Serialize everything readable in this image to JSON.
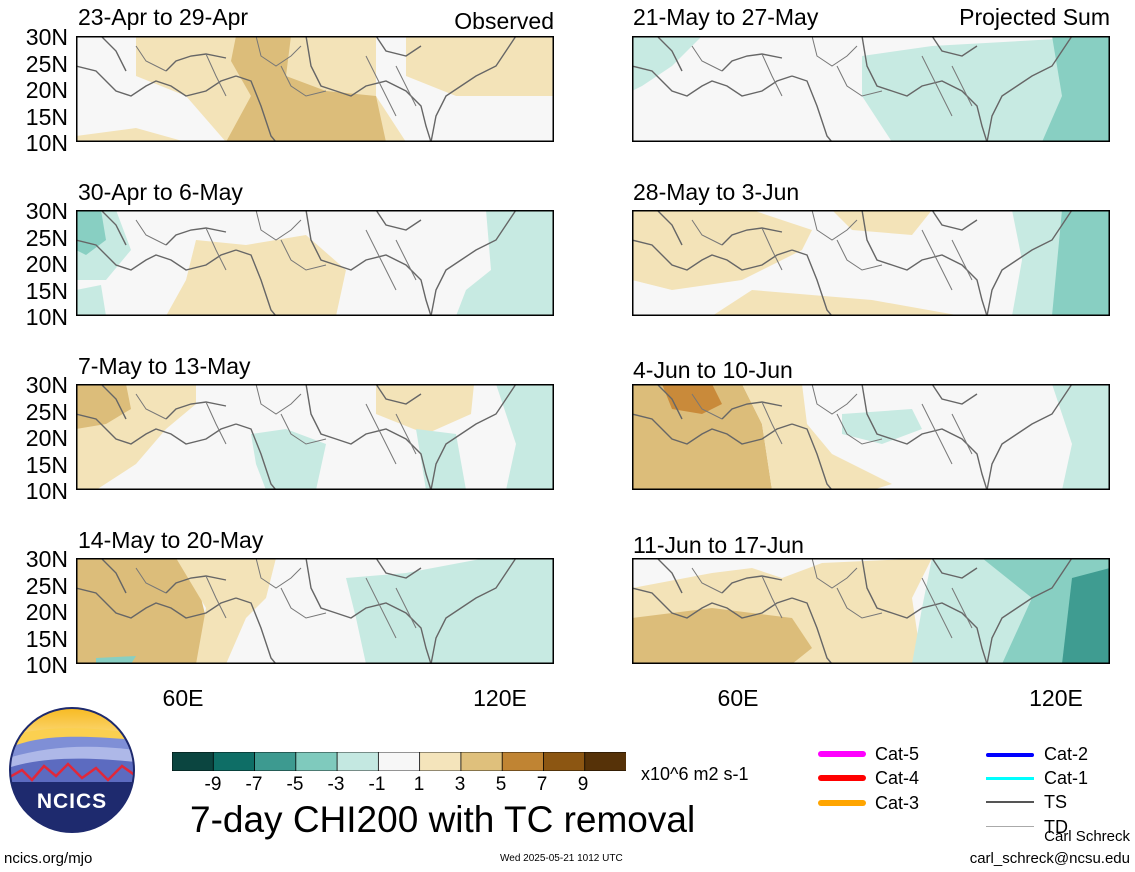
{
  "observed_label": "Observed",
  "projected_label": "Projected Sum",
  "panels": [
    {
      "title": "23-Apr to 29-Apr"
    },
    {
      "title": "30-Apr to 6-May"
    },
    {
      "title": "7-May to 13-May"
    },
    {
      "title": "14-May to 20-May"
    },
    {
      "title": "21-May to 27-May"
    },
    {
      "title": "28-May to 3-Jun"
    },
    {
      "title": "4-Jun to 10-Jun"
    },
    {
      "title": "11-Jun to 17-Jun"
    }
  ],
  "y_ticks": [
    "30N",
    "25N",
    "20N",
    "15N",
    "10N"
  ],
  "x_ticks": [
    "60E",
    "120E"
  ],
  "colorbar": {
    "labels": [
      "-9",
      "-7",
      "-5",
      "-3",
      "-1",
      "1",
      "3",
      "5",
      "7",
      "9"
    ],
    "colors": [
      "#0b4540",
      "#0e6e66",
      "#3d9a90",
      "#7fcabd",
      "#c4e8e1",
      "#f7f7f7",
      "#f4e4bb",
      "#dfc07c",
      "#c08433",
      "#8c5612",
      "#563208"
    ],
    "units": "x10^6 m2 s-1"
  },
  "legend": [
    {
      "label": "Cat-5",
      "color": "#ff00ff"
    },
    {
      "label": "Cat-4",
      "color": "#ff0000"
    },
    {
      "label": "Cat-3",
      "color": "#ffa500"
    },
    {
      "label": "Cat-2",
      "color": "#0000ff"
    },
    {
      "label": "Cat-1",
      "color": "#00ffff"
    },
    {
      "label": "TS",
      "color": "#555555"
    },
    {
      "label": "TD",
      "color": "#aaaaaa"
    }
  ],
  "logo_text": "NCICS",
  "main_title": "7-day CHI200 with TC removal",
  "footer": {
    "left": "ncics.org/mjo",
    "center": "Wed 2025-05-21 1012 UTC",
    "author": "Carl Schreck",
    "email": "carl_schreck@ncsu.edu"
  }
}
